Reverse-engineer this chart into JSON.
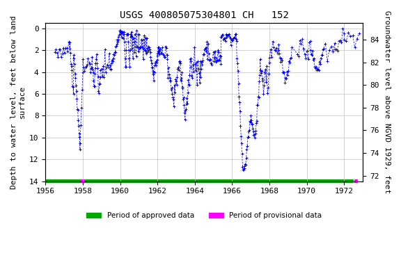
{
  "title": "USGS 400805075304801 CH   152",
  "ylabel_left": "Depth to water level, feet below land\nsurface",
  "ylabel_right": "Groundwater level above NGVD 1929, feet",
  "xlim": [
    1956,
    1973
  ],
  "ylim_left": [
    14,
    -0.5
  ],
  "ylim_right": [
    71.5,
    85.5
  ],
  "xticks": [
    1956,
    1958,
    1960,
    1962,
    1964,
    1966,
    1968,
    1970,
    1972
  ],
  "yticks_left": [
    0,
    2,
    4,
    6,
    8,
    10,
    12,
    14
  ],
  "yticks_right": [
    72,
    74,
    76,
    78,
    80,
    82,
    84
  ],
  "data_color": "#0000FF",
  "line_color": "#0000FF",
  "background_color": "#FFFFFF",
  "grid_color": "#C0C0C0",
  "approved_color": "#00AA00",
  "provisional_color": "#FF00FF",
  "legend_approved": "Period of approved data",
  "legend_provisional": "Period of provisional data",
  "title_fontsize": 10,
  "axis_label_fontsize": 8,
  "tick_fontsize": 8,
  "approved_bar_start": 1956.0,
  "approved_bar_end": 1972.5,
  "provisional_bar_start": 1957.85,
  "provisional_bar_end": 1958.1,
  "provisional_bar_start2": 1972.55,
  "provisional_bar_end2": 1972.75
}
